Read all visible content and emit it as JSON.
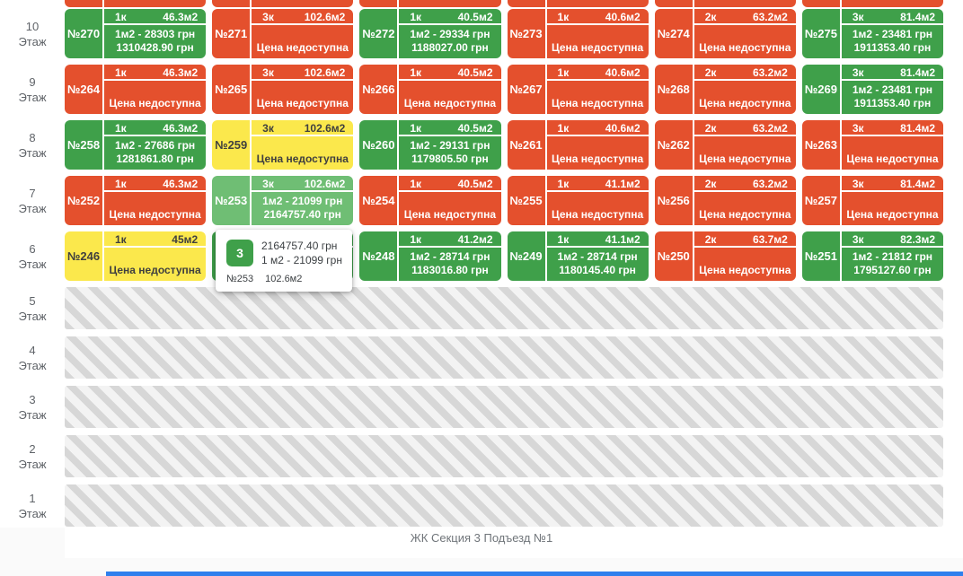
{
  "page": {
    "footer_title": "ЖК Секция 3 Подъезд №1"
  },
  "labels": {
    "floor_word": "Этаж",
    "price_unavailable": "Цена недоступна"
  },
  "colors": {
    "green": "#3fa04a",
    "green_hover": "#6fbe74",
    "red": "#e4502d",
    "yellow": "#fbe84c",
    "yellow_text": "#3f3f3f",
    "stripe": "#d7d7d7",
    "stripe_bg": "#f3f3f3",
    "footer_bar": "#2f80ed"
  },
  "partial_top_row": {
    "status": "red",
    "count": 6
  },
  "floors": [
    {
      "number": "10",
      "type": "apartments",
      "apartments": [
        {
          "id": "№270",
          "rooms": "1к",
          "area": "46.3м2",
          "status": "green",
          "line1": "1м2 - 28303 грн",
          "line2": "1310428.90 грн"
        },
        {
          "id": "№271",
          "rooms": "3к",
          "area": "102.6м2",
          "status": "red"
        },
        {
          "id": "№272",
          "rooms": "1к",
          "area": "40.5м2",
          "status": "green",
          "line1": "1м2 - 29334 грн",
          "line2": "1188027.00 грн"
        },
        {
          "id": "№273",
          "rooms": "1к",
          "area": "40.6м2",
          "status": "red"
        },
        {
          "id": "№274",
          "rooms": "2к",
          "area": "63.2м2",
          "status": "red"
        },
        {
          "id": "№275",
          "rooms": "3к",
          "area": "81.4м2",
          "status": "green",
          "line1": "1м2 - 23481 грн",
          "line2": "1911353.40 грн"
        }
      ]
    },
    {
      "number": "9",
      "type": "apartments",
      "apartments": [
        {
          "id": "№264",
          "rooms": "1к",
          "area": "46.3м2",
          "status": "red"
        },
        {
          "id": "№265",
          "rooms": "3к",
          "area": "102.6м2",
          "status": "red"
        },
        {
          "id": "№266",
          "rooms": "1к",
          "area": "40.5м2",
          "status": "red"
        },
        {
          "id": "№267",
          "rooms": "1к",
          "area": "40.6м2",
          "status": "red"
        },
        {
          "id": "№268",
          "rooms": "2к",
          "area": "63.2м2",
          "status": "red"
        },
        {
          "id": "№269",
          "rooms": "3к",
          "area": "81.4м2",
          "status": "green",
          "line1": "1м2 - 23481 грн",
          "line2": "1911353.40 грн"
        }
      ]
    },
    {
      "number": "8",
      "type": "apartments",
      "apartments": [
        {
          "id": "№258",
          "rooms": "1к",
          "area": "46.3м2",
          "status": "green",
          "line1": "1м2 - 27686 грн",
          "line2": "1281861.80 грн"
        },
        {
          "id": "№259",
          "rooms": "3к",
          "area": "102.6м2",
          "status": "yellow"
        },
        {
          "id": "№260",
          "rooms": "1к",
          "area": "40.5м2",
          "status": "green",
          "line1": "1м2 - 29131 грн",
          "line2": "1179805.50 грн"
        },
        {
          "id": "№261",
          "rooms": "1к",
          "area": "40.6м2",
          "status": "red"
        },
        {
          "id": "№262",
          "rooms": "2к",
          "area": "63.2м2",
          "status": "red"
        },
        {
          "id": "№263",
          "rooms": "3к",
          "area": "81.4м2",
          "status": "red"
        }
      ]
    },
    {
      "number": "7",
      "type": "apartments",
      "apartments": [
        {
          "id": "№252",
          "rooms": "1к",
          "area": "46.3м2",
          "status": "red"
        },
        {
          "id": "№253",
          "rooms": "3к",
          "area": "102.6м2",
          "status": "green_hover",
          "line1": "1м2 - 21099 грн",
          "line2": "2164757.40 грн"
        },
        {
          "id": "№254",
          "rooms": "1к",
          "area": "40.5м2",
          "status": "red"
        },
        {
          "id": "№255",
          "rooms": "1к",
          "area": "41.1м2",
          "status": "red"
        },
        {
          "id": "№256",
          "rooms": "2к",
          "area": "63.2м2",
          "status": "red"
        },
        {
          "id": "№257",
          "rooms": "3к",
          "area": "81.4м2",
          "status": "red"
        }
      ]
    },
    {
      "number": "6",
      "type": "apartments",
      "apartments": [
        {
          "id": "№246",
          "rooms": "1к",
          "area": "45м2",
          "status": "yellow"
        },
        {
          "id": "",
          "rooms": "",
          "area": "",
          "status": "green",
          "covered": true
        },
        {
          "id": "№248",
          "rooms": "1к",
          "area": "41.2м2",
          "status": "green",
          "line1": "1м2 - 28714 грн",
          "line2": "1183016.80 грн"
        },
        {
          "id": "№249",
          "rooms": "1к",
          "area": "41.1м2",
          "status": "green",
          "line1": "1м2 - 28714 грн",
          "line2": "1180145.40 грн"
        },
        {
          "id": "№250",
          "rooms": "2к",
          "area": "63.7м2",
          "status": "red"
        },
        {
          "id": "№251",
          "rooms": "3к",
          "area": "82.3м2",
          "status": "green",
          "line1": "1м2 - 21812 грн",
          "line2": "1795127.60 грн"
        }
      ]
    },
    {
      "number": "5",
      "type": "construction"
    },
    {
      "number": "4",
      "type": "construction"
    },
    {
      "number": "3",
      "type": "construction"
    },
    {
      "number": "2",
      "type": "construction"
    },
    {
      "number": "1",
      "type": "construction"
    }
  ],
  "tooltip": {
    "badge": "3",
    "price_total": "2164757.40 грн",
    "price_per_m2": "1 м2 - 21099 грн",
    "apartment": "№253",
    "area": "102.6м2"
  }
}
